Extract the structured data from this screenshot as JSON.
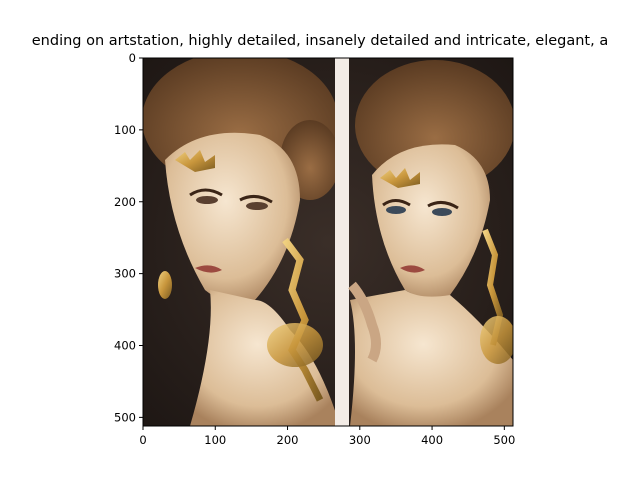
{
  "figure": {
    "title": "ending on artstation, highly detailed, insanely detailed and intricate, elegant, a"
  },
  "image": {
    "description_colors": {
      "background": "#2a211d",
      "hair": "#7a5535",
      "skin": "#e8cfb0",
      "gold": "#c8963c",
      "divider": "#f3ece6"
    },
    "xlim": [
      0,
      512
    ],
    "ylim": [
      512,
      0
    ]
  },
  "axes": {
    "x_ticks": [
      {
        "value": 0,
        "label": "0"
      },
      {
        "value": 100,
        "label": "100"
      },
      {
        "value": 200,
        "label": "200"
      },
      {
        "value": 300,
        "label": "300"
      },
      {
        "value": 400,
        "label": "400"
      },
      {
        "value": 500,
        "label": "500"
      }
    ],
    "y_ticks": [
      {
        "value": 0,
        "label": "0"
      },
      {
        "value": 100,
        "label": "100"
      },
      {
        "value": 200,
        "label": "200"
      },
      {
        "value": 300,
        "label": "300"
      },
      {
        "value": 400,
        "label": "400"
      },
      {
        "value": 500,
        "label": "500"
      }
    ]
  }
}
